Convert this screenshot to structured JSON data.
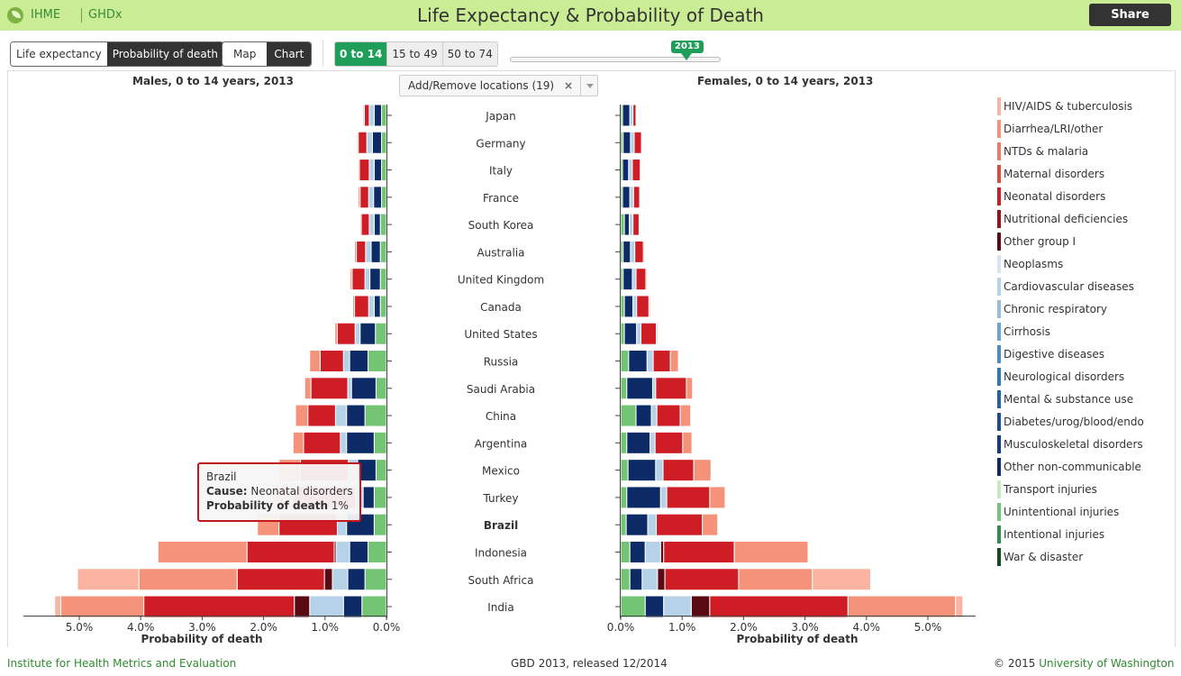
{
  "header": {
    "brand_ihme": "IHME",
    "brand_ghdx": "GHDx",
    "title": "Life Expectancy & Probability of Death",
    "share_label": "Share"
  },
  "controls": {
    "measure_tabs": [
      "Life expectancy",
      "Probability of death"
    ],
    "measure_selected": "Probability of death",
    "view_tabs": [
      "Map",
      "Chart"
    ],
    "view_selected": "Chart",
    "age_groups": [
      "0 to 14",
      "15 to 49",
      "50 to 74"
    ],
    "age_selected": "0 to 14",
    "year": "2013"
  },
  "locations_select": {
    "label": "Add/Remove locations (19)",
    "clear": "×"
  },
  "tooltip": {
    "location": "Brazil",
    "cause_label": "Cause:",
    "cause_value": "Neonatal disorders",
    "prob_label": "Probability of death",
    "prob_value": "1%"
  },
  "legend": [
    {
      "label": "HIV/AIDS & tuberculosis",
      "color": "#fbb4a2"
    },
    {
      "label": "Diarrhea/LRI/other",
      "color": "#f4937a"
    },
    {
      "label": "NTDs & malaria",
      "color": "#ef7a66"
    },
    {
      "label": "Maternal disorders",
      "color": "#e34a3f"
    },
    {
      "label": "Neonatal disorders",
      "color": "#cf1d26"
    },
    {
      "label": "Nutritional deficiencies",
      "color": "#9e0f1e"
    },
    {
      "label": "Other group I",
      "color": "#5a0a12"
    },
    {
      "label": "Neoplasms",
      "color": "#d6e4f2"
    },
    {
      "label": "Cardiovascular diseases",
      "color": "#b5d2e8"
    },
    {
      "label": "Chronic respiratory",
      "color": "#95bfdd"
    },
    {
      "label": "Cirrhosis",
      "color": "#6aa5cf"
    },
    {
      "label": "Digestive diseases",
      "color": "#4a8fc4"
    },
    {
      "label": "Neurological disorders",
      "color": "#2f79b5"
    },
    {
      "label": "Mental & substance use",
      "color": "#1f63a4"
    },
    {
      "label": "Diabetes/urog/blood/endo",
      "color": "#174f90"
    },
    {
      "label": "Musculoskeletal disorders",
      "color": "#123d7c"
    },
    {
      "label": "Other non-communicable",
      "color": "#0c2b66"
    },
    {
      "label": "Transport injuries",
      "color": "#c8e9c0"
    },
    {
      "label": "Unintentional injuries",
      "color": "#74c476"
    },
    {
      "label": "Intentional injuries",
      "color": "#2f8e46"
    },
    {
      "label": "War & disaster",
      "color": "#114b24"
    }
  ],
  "chart_data": {
    "type": "bar",
    "orientation": "horizontal",
    "stacked": true,
    "locations": [
      "Japan",
      "Germany",
      "Italy",
      "France",
      "South Korea",
      "Australia",
      "United Kingdom",
      "Canada",
      "United States",
      "Russia",
      "Saudi Arabia",
      "China",
      "Argentina",
      "Mexico",
      "Turkey",
      "Brazil",
      "Indonesia",
      "South Africa",
      "India"
    ],
    "highlighted_location": "Brazil",
    "segment_order": [
      "HIV/AIDS & tuberculosis",
      "Diarrhea/LRI/other",
      "Neonatal disorders",
      "Other group I",
      "Non-communicable",
      "Other non-communicable",
      "Injuries"
    ],
    "segment_colors": {
      "HIV/AIDS & tuberculosis": "#fbb4a2",
      "Diarrhea/LRI/other": "#f4937a",
      "Neonatal disorders": "#cf1d26",
      "Other group I": "#5a0a12",
      "Non-communicable": "#b5d2e8",
      "Other non-communicable": "#0c2b66",
      "Injuries": "#74c476"
    },
    "panels": [
      {
        "title": "Males, 0 to 14 years, 2013",
        "xlabel": "Probability of death",
        "direction": "left",
        "xlim": [
          0,
          5.8
        ],
        "ticks": [
          "0.0%",
          "1.0%",
          "2.0%",
          "3.0%",
          "4.0%",
          "5.0%"
        ],
        "series": [
          {
            "name": "HIV/AIDS & tuberculosis",
            "values": [
              0,
              0,
              0,
              0,
              0,
              0,
              0,
              0,
              0,
              0,
              0,
              0,
              0,
              0,
              0,
              0,
              0,
              1.0,
              0.1
            ]
          },
          {
            "name": "Diarrhea/LRI/other",
            "values": [
              0.02,
              0.02,
              0.02,
              0.03,
              0.02,
              0.03,
              0.03,
              0.03,
              0.04,
              0.17,
              0.1,
              0.2,
              0.17,
              0.35,
              0.35,
              0.35,
              1.45,
              1.6,
              1.35
            ]
          },
          {
            "name": "Neonatal disorders",
            "values": [
              0.08,
              0.14,
              0.16,
              0.14,
              0.13,
              0.15,
              0.21,
              0.23,
              0.29,
              0.38,
              0.6,
              0.45,
              0.6,
              0.78,
              1.0,
              0.95,
              1.42,
              1.42,
              2.45
            ]
          },
          {
            "name": "Other group I",
            "values": [
              0,
              0,
              0,
              0,
              0,
              0,
              0,
              0,
              0,
              0,
              0,
              0,
              0,
              0,
              0,
              0,
              0.03,
              0.13,
              0.25
            ]
          },
          {
            "name": "Non-communicable",
            "values": [
              0.08,
              0.09,
              0.08,
              0.08,
              0.08,
              0.09,
              0.08,
              0.09,
              0.08,
              0.1,
              0.06,
              0.18,
              0.1,
              0.15,
              0.12,
              0.15,
              0.22,
              0.25,
              0.55
            ]
          },
          {
            "name": "Other non-communicable",
            "values": [
              0.12,
              0.15,
              0.12,
              0.13,
              0.1,
              0.15,
              0.17,
              0.1,
              0.25,
              0.3,
              0.4,
              0.3,
              0.45,
              0.3,
              0.18,
              0.45,
              0.3,
              0.28,
              0.3
            ]
          },
          {
            "name": "Injuries",
            "values": [
              0.08,
              0.08,
              0.08,
              0.08,
              0.1,
              0.1,
              0.1,
              0.1,
              0.18,
              0.3,
              0.17,
              0.35,
              0.2,
              0.17,
              0.2,
              0.2,
              0.3,
              0.35,
              0.4
            ]
          }
        ]
      },
      {
        "title": "Females, 0 to 14 years, 2013",
        "xlabel": "Probability of death",
        "direction": "right",
        "xlim": [
          0,
          5.8
        ],
        "ticks": [
          "0.0%",
          "1.0%",
          "2.0%",
          "3.0%",
          "4.0%",
          "5.0%"
        ],
        "series": [
          {
            "name": "Injuries",
            "values": [
              0.03,
              0.04,
              0.03,
              0.03,
              0.06,
              0.04,
              0.04,
              0.06,
              0.06,
              0.13,
              0.1,
              0.25,
              0.1,
              0.12,
              0.1,
              0.09,
              0.15,
              0.15,
              0.4
            ]
          },
          {
            "name": "Other non-communicable",
            "values": [
              0.12,
              0.12,
              0.1,
              0.12,
              0.08,
              0.12,
              0.15,
              0.14,
              0.2,
              0.3,
              0.42,
              0.25,
              0.38,
              0.45,
              0.55,
              0.35,
              0.25,
              0.2,
              0.3
            ]
          },
          {
            "name": "Non-communicable",
            "values": [
              0.05,
              0.06,
              0.06,
              0.06,
              0.06,
              0.07,
              0.06,
              0.06,
              0.07,
              0.1,
              0.05,
              0.09,
              0.08,
              0.12,
              0.1,
              0.14,
              0.25,
              0.25,
              0.45
            ]
          },
          {
            "name": "Other group I",
            "values": [
              0,
              0,
              0,
              0,
              0,
              0,
              0,
              0,
              0,
              0,
              0,
              0,
              0,
              0,
              0,
              0,
              0.05,
              0.12,
              0.3
            ]
          },
          {
            "name": "Neonatal disorders",
            "values": [
              0.05,
              0.12,
              0.13,
              0.1,
              0.1,
              0.14,
              0.16,
              0.2,
              0.25,
              0.28,
              0.5,
              0.38,
              0.45,
              0.5,
              0.7,
              0.75,
              1.15,
              1.2,
              2.25
            ]
          },
          {
            "name": "Diarrhea/LRI/other",
            "values": [
              0.01,
              0.01,
              0.01,
              0.01,
              0.01,
              0.02,
              0.02,
              0.02,
              0.02,
              0.13,
              0.1,
              0.17,
              0.15,
              0.28,
              0.25,
              0.25,
              1.2,
              1.2,
              1.75
            ]
          },
          {
            "name": "HIV/AIDS & tuberculosis",
            "values": [
              0,
              0,
              0,
              0,
              0,
              0,
              0,
              0,
              0,
              0,
              0,
              0,
              0,
              0,
              0,
              0,
              0,
              0.95,
              0.12
            ]
          }
        ]
      }
    ]
  },
  "footer": {
    "left": "Institute for Health Metrics and Evaluation",
    "center": "GBD 2013, released 12/2014",
    "right_prefix": "© 2015",
    "right_link": "University of Washington"
  }
}
